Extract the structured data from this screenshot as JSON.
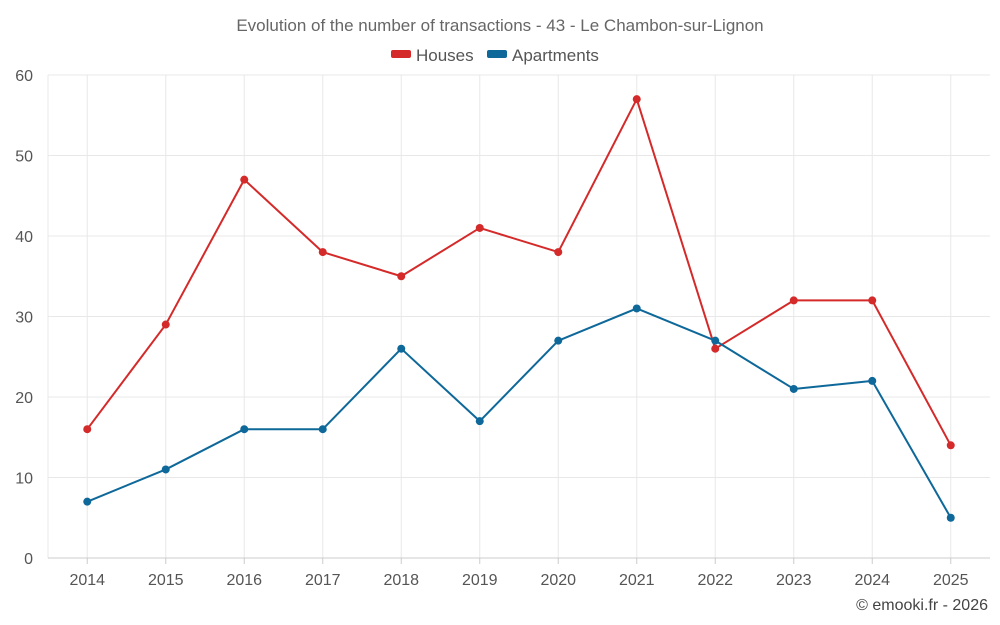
{
  "chart_data": {
    "type": "line",
    "title": "Evolution of the number of transactions - 43 - Le Chambon-sur-Lignon",
    "categories": [
      "2014",
      "2015",
      "2016",
      "2017",
      "2018",
      "2019",
      "2020",
      "2021",
      "2022",
      "2023",
      "2024",
      "2025"
    ],
    "series": [
      {
        "name": "Houses",
        "color": "#d42a2a",
        "values": [
          16,
          29,
          47,
          38,
          35,
          41,
          38,
          57,
          26,
          32,
          32,
          14
        ]
      },
      {
        "name": "Apartments",
        "color": "#0e6899",
        "values": [
          7,
          11,
          16,
          16,
          26,
          17,
          27,
          31,
          27,
          21,
          22,
          5
        ]
      }
    ],
    "ylim": [
      0,
      60
    ],
    "yticks": [
      0,
      10,
      20,
      30,
      40,
      50,
      60
    ],
    "grid": true,
    "legend_position": "top-center",
    "xlabel": "",
    "ylabel": ""
  },
  "credit": "© emooki.fr - 2026"
}
